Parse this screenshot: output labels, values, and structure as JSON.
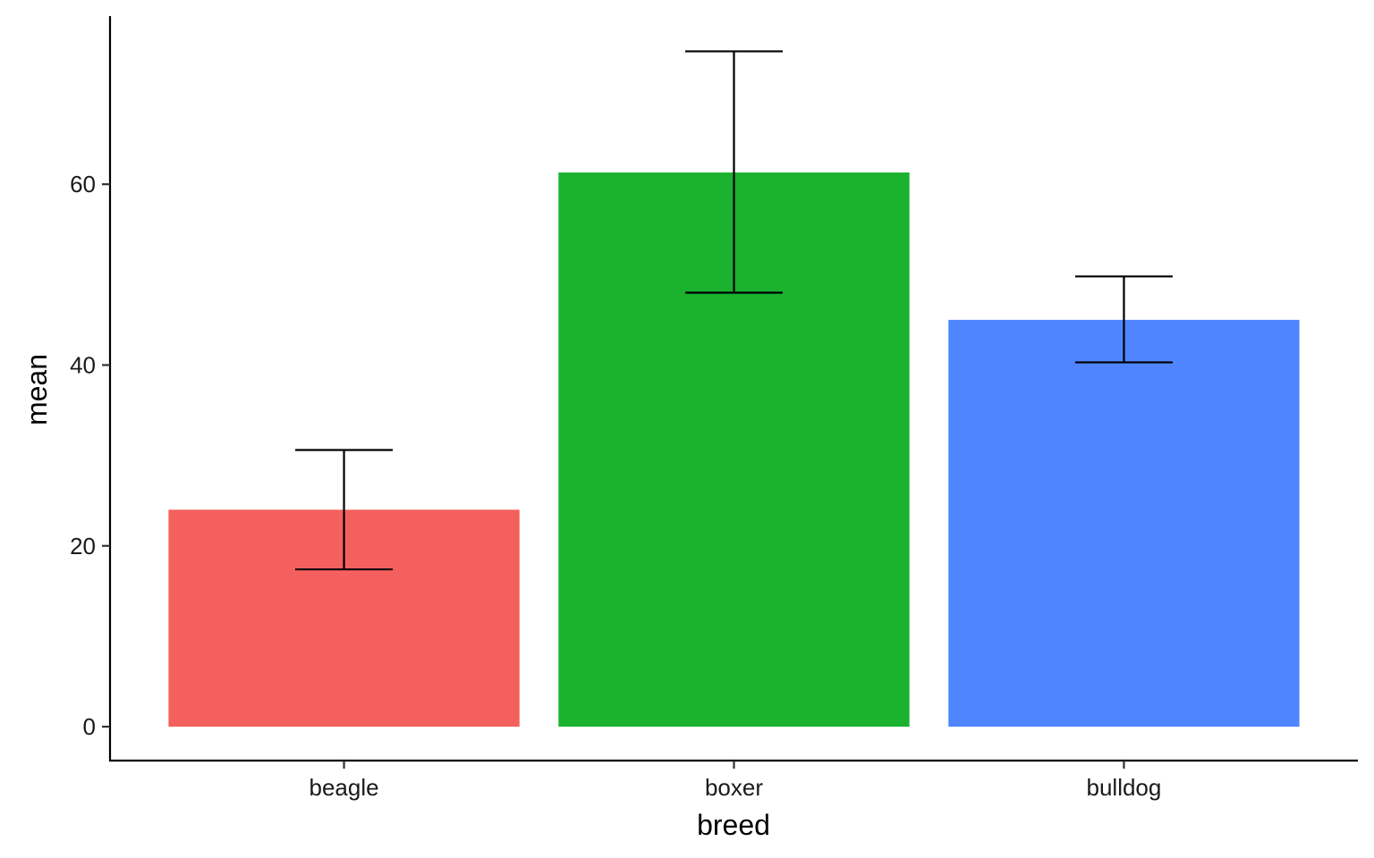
{
  "chart_data": {
    "type": "bar",
    "categories": [
      "beagle",
      "boxer",
      "bulldog"
    ],
    "values": [
      24,
      61.3,
      45
    ],
    "error_low": [
      17.4,
      48,
      40.3
    ],
    "error_high": [
      30.6,
      74.7,
      49.8
    ],
    "colors": [
      "#F4605D",
      "#1AB22F",
      "#4F86FF"
    ],
    "xlabel": "breed",
    "ylabel": "mean",
    "ylim": [
      -3.75,
      78.6
    ],
    "yticks": [
      0,
      20,
      40,
      60
    ],
    "grid": false,
    "legend": "none"
  }
}
